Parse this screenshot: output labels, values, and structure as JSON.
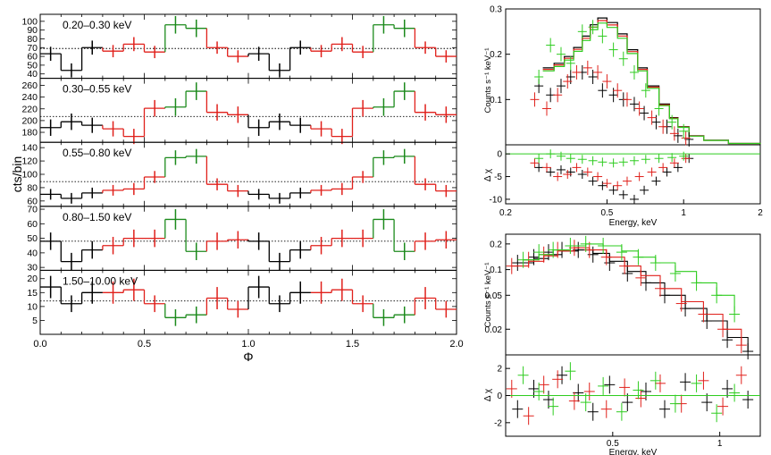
{
  "chart_data": [
    {
      "type": "line",
      "title": "",
      "xlabel": "Φ",
      "ylabel": "cts/bin",
      "xlim": [
        0,
        2
      ],
      "x_ticks": [
        "0.0",
        "0.5",
        "1.0",
        "1.5",
        "2.0"
      ],
      "phase_bins": [
        0.05,
        0.15,
        0.25,
        0.35,
        0.45,
        0.55,
        0.65,
        0.75,
        0.85,
        0.95,
        1.05,
        1.15,
        1.25,
        1.35,
        1.45,
        1.55,
        1.65,
        1.75,
        1.85,
        1.95
      ],
      "bin_colors": [
        "#000000",
        "#000000",
        "#000000",
        "#e0201b",
        "#e0201b",
        "#e0201b",
        "#1c8a1c",
        "#1c8a1c",
        "#e0201b",
        "#e0201b",
        "#000000",
        "#000000",
        "#000000",
        "#e0201b",
        "#e0201b",
        "#e0201b",
        "#1c8a1c",
        "#1c8a1c",
        "#e0201b",
        "#e0201b"
      ],
      "panels": [
        {
          "label": "0.20–0.30 keV",
          "ylim": [
            35,
            108
          ],
          "yticks": [
            40,
            50,
            60,
            70,
            80,
            90,
            100
          ],
          "mean": 69,
          "values": [
            63,
            44,
            70,
            66,
            74,
            65,
            96,
            92,
            70,
            60,
            63,
            44,
            70,
            66,
            74,
            65,
            96,
            92,
            70,
            60
          ],
          "errors": [
            8,
            8,
            8,
            7,
            8,
            7,
            10,
            10,
            7,
            7,
            8,
            8,
            8,
            7,
            8,
            7,
            10,
            10,
            7,
            7
          ]
        },
        {
          "label": "0.30–0.55 keV",
          "ylim": [
            163,
            272
          ],
          "yticks": [
            180,
            200,
            220,
            240,
            260
          ],
          "mean": 207,
          "values": [
            188,
            198,
            192,
            186,
            173,
            221,
            223,
            250,
            214,
            210,
            188,
            198,
            192,
            186,
            173,
            221,
            223,
            250,
            214,
            210
          ],
          "errors": [
            14,
            14,
            13,
            13,
            13,
            14,
            15,
            15,
            14,
            14,
            14,
            14,
            13,
            13,
            13,
            14,
            15,
            15,
            14,
            14
          ]
        },
        {
          "label": "0.55–0.80 keV",
          "ylim": [
            52,
            148
          ],
          "yticks": [
            60,
            80,
            100,
            120,
            140
          ],
          "mean": 89,
          "values": [
            70,
            64,
            72,
            76,
            78,
            96,
            125,
            127,
            85,
            75,
            70,
            64,
            72,
            76,
            78,
            96,
            125,
            127,
            85,
            75
          ],
          "errors": [
            8,
            8,
            8,
            8,
            9,
            9,
            11,
            11,
            9,
            9,
            8,
            8,
            8,
            8,
            9,
            9,
            11,
            11,
            9,
            9
          ]
        },
        {
          "label": "0.80–1.50 keV",
          "ylim": [
            28,
            72
          ],
          "yticks": [
            30,
            40,
            50,
            60,
            70
          ],
          "mean": 48,
          "values": [
            48,
            34,
            42,
            45,
            50,
            50,
            63,
            41,
            48,
            49,
            48,
            34,
            42,
            45,
            50,
            50,
            63,
            41,
            48,
            49
          ],
          "errors": [
            6,
            6,
            6,
            6,
            6,
            6,
            7,
            6,
            6,
            6,
            6,
            6,
            6,
            6,
            6,
            6,
            7,
            6,
            6,
            6
          ]
        },
        {
          "label": "1.50–10.00 keV",
          "ylim": [
            0,
            23
          ],
          "yticks": [
            5,
            10,
            15,
            20
          ],
          "mean": 12,
          "values": [
            17,
            11,
            15,
            15,
            16,
            11,
            6,
            7,
            13,
            9,
            17,
            11,
            15,
            15,
            16,
            11,
            6,
            7,
            13,
            9
          ],
          "errors": [
            4,
            3,
            4,
            4,
            4,
            3,
            3,
            3,
            4,
            3,
            4,
            3,
            4,
            4,
            4,
            3,
            3,
            3,
            4,
            3
          ]
        }
      ]
    },
    {
      "type": "scatter",
      "title": "",
      "xlabel": "Energy, keV",
      "ylabel": "Counts s⁻¹ keV⁻¹",
      "resid_ylabel": "Δ χ",
      "xscale": "log",
      "xlim": [
        0.2,
        2
      ],
      "x_ticks": [
        "0.2",
        "0.5",
        "1",
        "2"
      ],
      "ylim": [
        0,
        0.3
      ],
      "y_ticks": [
        "0.1",
        "0.2",
        "0.3"
      ],
      "resid_ylim": [
        -11,
        2
      ],
      "resid_ticks": [
        "0",
        "-5",
        "-10"
      ],
      "model": {
        "energy": [
          0.28,
          0.31,
          0.34,
          0.37,
          0.4,
          0.43,
          0.46,
          0.5,
          0.55,
          0.6,
          0.66,
          0.72,
          0.8,
          0.88,
          0.95,
          1.05,
          1.2,
          1.5,
          2.0
        ],
        "counts": [
          0.17,
          0.18,
          0.195,
          0.215,
          0.24,
          0.265,
          0.28,
          0.27,
          0.245,
          0.21,
          0.17,
          0.13,
          0.09,
          0.06,
          0.04,
          0.02,
          0.01,
          0.003,
          0.002
        ]
      },
      "series": [
        {
          "name": "black",
          "color": "#000000",
          "energy": [
            0.27,
            0.3,
            0.33,
            0.36,
            0.4,
            0.44,
            0.48,
            0.53,
            0.58,
            0.64,
            0.7,
            0.78,
            0.86,
            0.95,
            1.05
          ],
          "counts": [
            0.13,
            0.11,
            0.13,
            0.15,
            0.16,
            0.15,
            0.12,
            0.11,
            0.1,
            0.09,
            0.07,
            0.05,
            0.04,
            0.02,
            0.012
          ],
          "resid": [
            -3,
            -4,
            -3.5,
            -4,
            -4.5,
            -6,
            -7,
            -8,
            -9,
            -10,
            -8,
            -6,
            -4,
            -3,
            -1
          ]
        },
        {
          "name": "red",
          "color": "#e0201b",
          "energy": [
            0.26,
            0.29,
            0.32,
            0.35,
            0.38,
            0.42,
            0.46,
            0.5,
            0.55,
            0.6,
            0.67,
            0.75,
            0.83,
            0.92,
            1.02
          ],
          "counts": [
            0.1,
            0.08,
            0.11,
            0.14,
            0.16,
            0.17,
            0.16,
            0.14,
            0.12,
            0.1,
            0.08,
            0.06,
            0.04,
            0.025,
            0.015
          ],
          "resid": [
            -2,
            -3,
            -5,
            -4.5,
            -3,
            -4,
            -5,
            -6.5,
            -7,
            -6,
            -5,
            -4,
            -3,
            -2,
            -1
          ]
        },
        {
          "name": "green",
          "color": "#2ecc1f",
          "energy": [
            0.27,
            0.3,
            0.33,
            0.36,
            0.4,
            0.44,
            0.48,
            0.53,
            0.58,
            0.64,
            0.71,
            0.8,
            0.9,
            1.0
          ],
          "counts": [
            0.15,
            0.22,
            0.2,
            0.18,
            0.25,
            0.26,
            0.24,
            0.21,
            0.19,
            0.16,
            0.12,
            0.08,
            0.05,
            0.03
          ],
          "resid": [
            -1,
            0,
            -0.5,
            -1,
            -1.2,
            -1.5,
            -1.8,
            -2,
            -1.8,
            -1.5,
            -1.2,
            -1,
            -0.8,
            -0.5
          ]
        }
      ]
    },
    {
      "type": "scatter",
      "title": "",
      "xlabel": "Energy, keV",
      "ylabel": "Counts s⁻¹ keV⁻¹",
      "resid_ylabel": "Δ χ",
      "xscale": "log",
      "yscale": "log",
      "xlim": [
        0.25,
        1.3
      ],
      "x_ticks": [
        "0.5",
        "1"
      ],
      "ylim": [
        0.01,
        0.26
      ],
      "y_ticks": [
        "0.2",
        "0.1",
        "0.05",
        "0.02"
      ],
      "resid_ylim": [
        -3,
        3
      ],
      "resid_ticks": [
        "2",
        "0",
        "-2"
      ],
      "series": [
        {
          "name": "black",
          "color": "#000000",
          "energy": [
            0.27,
            0.3,
            0.33,
            0.36,
            0.4,
            0.44,
            0.49,
            0.55,
            0.62,
            0.7,
            0.8,
            0.92,
            1.05,
            1.2
          ],
          "counts": [
            0.12,
            0.14,
            0.16,
            0.17,
            0.17,
            0.15,
            0.12,
            0.09,
            0.07,
            0.05,
            0.035,
            0.025,
            0.015,
            0.011
          ],
          "model": [
            0.12,
            0.135,
            0.15,
            0.165,
            0.17,
            0.155,
            0.125,
            0.095,
            0.07,
            0.05,
            0.035,
            0.025,
            0.016,
            0.011
          ],
          "resid": [
            -1,
            0.5,
            -0.3,
            1.5,
            0.2,
            -1.2,
            0.8,
            -0.5,
            0.3,
            -1,
            1,
            -0.5,
            0.5,
            -0.3
          ]
        },
        {
          "name": "red",
          "color": "#e0201b",
          "energy": [
            0.26,
            0.29,
            0.32,
            0.35,
            0.39,
            0.43,
            0.48,
            0.54,
            0.6,
            0.68,
            0.78,
            0.9,
            1.02,
            1.15
          ],
          "counts": [
            0.11,
            0.13,
            0.15,
            0.17,
            0.18,
            0.17,
            0.14,
            0.11,
            0.08,
            0.06,
            0.04,
            0.03,
            0.02,
            0.013
          ],
          "model": [
            0.11,
            0.125,
            0.145,
            0.165,
            0.18,
            0.17,
            0.14,
            0.11,
            0.085,
            0.06,
            0.042,
            0.03,
            0.02,
            0.013
          ],
          "resid": [
            0.5,
            -1.5,
            0.8,
            1.2,
            -0.4,
            0.3,
            -1,
            0.6,
            -0.2,
            0.9,
            -0.6,
            1.1,
            -0.8,
            1.5
          ]
        },
        {
          "name": "green",
          "color": "#2ecc1f",
          "energy": [
            0.28,
            0.31,
            0.34,
            0.38,
            0.42,
            0.47,
            0.53,
            0.59,
            0.66,
            0.75,
            0.86,
            0.98,
            1.1
          ],
          "counts": [
            0.13,
            0.16,
            0.17,
            0.19,
            0.2,
            0.19,
            0.16,
            0.14,
            0.12,
            0.09,
            0.07,
            0.05,
            0.03
          ],
          "model": [
            0.13,
            0.15,
            0.17,
            0.19,
            0.2,
            0.19,
            0.165,
            0.14,
            0.12,
            0.095,
            0.07,
            0.05,
            0.032
          ],
          "resid": [
            1.5,
            0.3,
            -0.8,
            1.8,
            -0.5,
            0.7,
            -1.2,
            0.4,
            1.1,
            -0.6,
            0.9,
            -1.3,
            0.2
          ]
        }
      ]
    }
  ]
}
